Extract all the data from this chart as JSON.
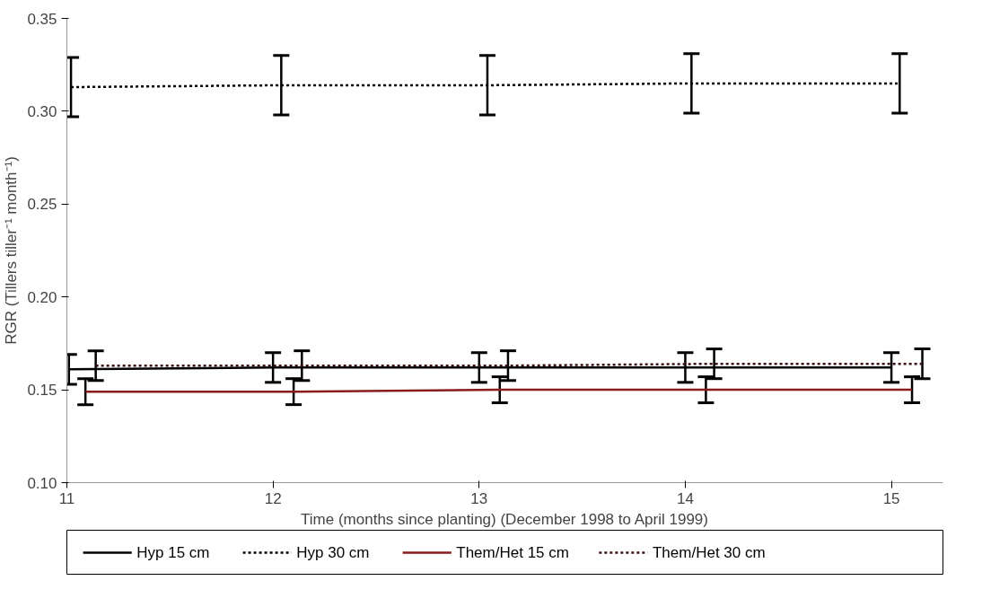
{
  "chart_data": {
    "type": "line",
    "xlabel": "Time (months since planting) (December 1998 to April 1999)",
    "ylabel": "RGR (Tillers tiller⁻¹ month⁻¹)",
    "xlim": [
      11,
      15.25
    ],
    "xticks": [
      11,
      12,
      13,
      14,
      15
    ],
    "ylim": [
      0.1,
      0.35
    ],
    "yticks": [
      {
        "value": 0.1,
        "label": "0.10"
      },
      0.15,
      {
        "value": 0.2,
        "label": "0.20"
      },
      0.25,
      {
        "value": 0.3,
        "label": "0.30"
      },
      0.35
    ],
    "grid": false,
    "legend": "bottom",
    "marker": "none",
    "series": [
      {
        "name": "Hyp 15 cm",
        "color": "#000000",
        "line_style": "solid",
        "x": [
          11.01,
          12.0,
          13.0,
          14.0,
          15.0
        ],
        "values": [
          0.161,
          0.162,
          0.162,
          0.162,
          0.162
        ],
        "errors": [
          0.008,
          0.008,
          0.008,
          0.008,
          0.008
        ]
      },
      {
        "name": "Hyp 30 cm",
        "color": "#000000",
        "line_style": "dotted",
        "x": [
          11.02,
          12.04,
          13.04,
          14.03,
          15.04
        ],
        "values": [
          0.313,
          0.314,
          0.314,
          0.315,
          0.315
        ],
        "errors": [
          0.016,
          0.016,
          0.016,
          0.016,
          0.016
        ]
      },
      {
        "name": "Them/Het 15 cm",
        "color": "#8b1a1a",
        "line_style": "solid",
        "x": [
          11.09,
          12.1,
          13.1,
          14.1,
          15.1
        ],
        "values": [
          0.149,
          0.149,
          0.15,
          0.15,
          0.15
        ],
        "errors": [
          0.007,
          0.007,
          0.007,
          0.007,
          0.007
        ]
      },
      {
        "name": "Them/Het 30 cm",
        "color": "#3a1010",
        "line_style": "dotted",
        "x": [
          11.14,
          12.14,
          13.14,
          14.14,
          15.15
        ],
        "values": [
          0.163,
          0.163,
          0.163,
          0.164,
          0.164
        ],
        "errors": [
          0.008,
          0.008,
          0.008,
          0.008,
          0.008
        ]
      }
    ]
  }
}
